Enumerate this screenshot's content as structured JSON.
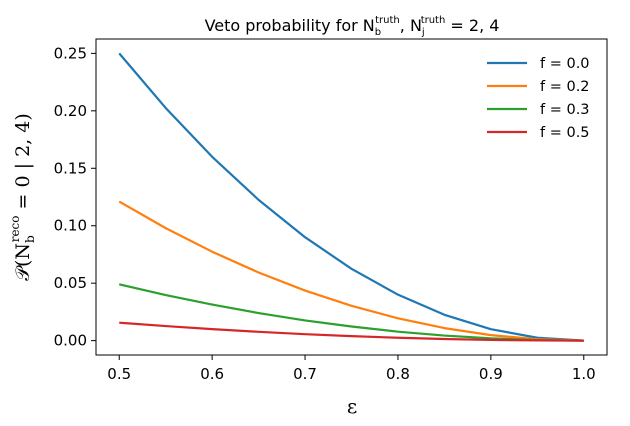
{
  "chart_data": {
    "type": "line",
    "title": {
      "prefix": "Veto probability for N",
      "sub1": "b",
      "sup1": "truth",
      "mid": ", N",
      "sub2": "j",
      "sup2": "truth",
      "suffix": " = 2, 4"
    },
    "xlabel": "ε",
    "ylabel": {
      "prefix": "𝒫(N",
      "sub": "b",
      "sup": "reco",
      "suffix": " = 0 | 2, 4)"
    },
    "xlim": [
      0.475,
      1.025
    ],
    "ylim": [
      -0.0125,
      0.2625
    ],
    "xticks": [
      0.5,
      0.6,
      0.7,
      0.8,
      0.9,
      1.0
    ],
    "xtick_labels": [
      "0.5",
      "0.6",
      "0.7",
      "0.8",
      "0.9",
      "1.0"
    ],
    "yticks": [
      0.0,
      0.05,
      0.1,
      0.15,
      0.2,
      0.25
    ],
    "ytick_labels": [
      "0.00",
      "0.05",
      "0.10",
      "0.15",
      "0.20",
      "0.25"
    ],
    "grid": false,
    "legend_position": "top-right",
    "x": [
      0.5,
      0.55,
      0.6,
      0.65,
      0.7,
      0.75,
      0.8,
      0.85,
      0.9,
      0.95,
      1.0
    ],
    "series": [
      {
        "name": "f = 0.0",
        "color": "#1f77b4",
        "values": [
          0.25,
          0.2025,
          0.16,
          0.1225,
          0.09,
          0.0625,
          0.04,
          0.0225,
          0.01,
          0.0025,
          0.0
        ]
      },
      {
        "name": "f = 0.2",
        "color": "#ff7f0e",
        "values": [
          0.121,
          0.0979,
          0.0774,
          0.0593,
          0.0436,
          0.0303,
          0.0194,
          0.0109,
          0.0048,
          0.0012,
          0.0
        ]
      },
      {
        "name": "f = 0.3",
        "color": "#2ca02c",
        "values": [
          0.049,
          0.0397,
          0.0314,
          0.024,
          0.0176,
          0.0123,
          0.0078,
          0.0044,
          0.002,
          0.0005,
          0.0
        ]
      },
      {
        "name": "f = 0.5",
        "color": "#d62728",
        "values": [
          0.0156,
          0.0127,
          0.01,
          0.0077,
          0.0056,
          0.0039,
          0.0025,
          0.0014,
          0.0006,
          0.0002,
          0.0
        ]
      }
    ]
  }
}
